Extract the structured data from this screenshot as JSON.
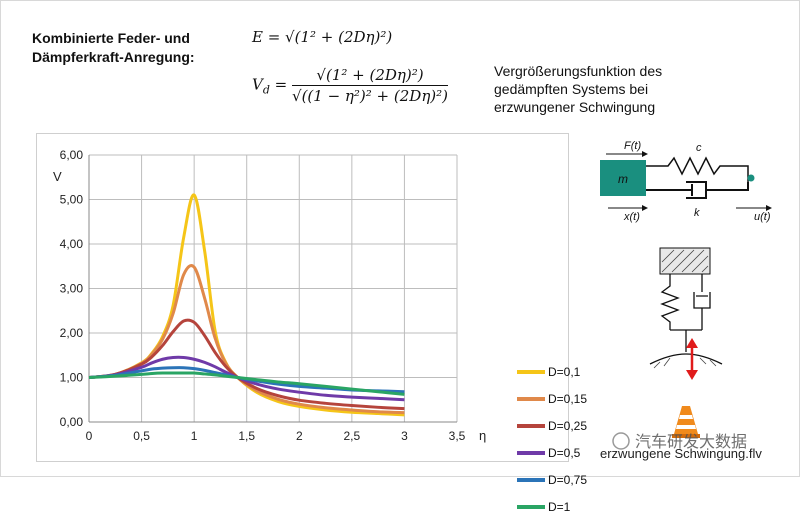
{
  "header": {
    "title_line1": "Kombinierte Feder- und",
    "title_line2": "Dämpferkraft-Anregung:"
  },
  "formulas": {
    "e": "E = √(1² + (2Dη)²)",
    "vd_lhs": "V",
    "vd_sub": "d",
    "vd_num": "√(1² + (2Dη)²)",
    "vd_den": "√((1 − η²)² + (2Dη)²)"
  },
  "description": {
    "line1": "Vergrößerungsfunktion des",
    "line2": "gedämpften Systems bei",
    "line3": "erzwungener Schwingung"
  },
  "chart_data": {
    "type": "line",
    "ylabel": "V",
    "xlabel": "η",
    "xlim": [
      0,
      3.5
    ],
    "ylim": [
      0,
      6
    ],
    "x_ticks": [
      "0",
      "0,5",
      "1",
      "1,5",
      "2",
      "2,5",
      "3",
      "3,5"
    ],
    "y_ticks": [
      "0,00",
      "1,00",
      "2,00",
      "3,00",
      "4,00",
      "5,00",
      "6,00"
    ],
    "grid": true,
    "legend_position": "right",
    "x": [
      0,
      0.25,
      0.5,
      0.6,
      0.7,
      0.8,
      0.9,
      1.0,
      1.1,
      1.2,
      1.3,
      1.414,
      1.6,
      1.8,
      2.0,
      2.25,
      2.5,
      2.75,
      3.0
    ],
    "series": [
      {
        "name": "D=0,1",
        "color": "#f5c518",
        "values": [
          1.0,
          1.07,
          1.33,
          1.55,
          1.92,
          2.62,
          4.14,
          5.1,
          3.84,
          2.04,
          1.34,
          1.0,
          0.66,
          0.46,
          0.35,
          0.27,
          0.22,
          0.19,
          0.16
        ]
      },
      {
        "name": "D=0,15",
        "color": "#e0894a",
        "values": [
          1.0,
          1.07,
          1.32,
          1.53,
          1.86,
          2.44,
          3.31,
          3.48,
          2.78,
          1.88,
          1.32,
          1.0,
          0.7,
          0.51,
          0.4,
          0.32,
          0.27,
          0.23,
          0.21
        ]
      },
      {
        "name": "D=0,25",
        "color": "#b5443c",
        "values": [
          1.0,
          1.07,
          1.3,
          1.47,
          1.72,
          2.03,
          2.27,
          2.24,
          1.94,
          1.56,
          1.25,
          1.0,
          0.75,
          0.59,
          0.49,
          0.42,
          0.37,
          0.33,
          0.3
        ]
      },
      {
        "name": "D=0,5",
        "color": "#6f3aa8",
        "values": [
          1.0,
          1.06,
          1.23,
          1.33,
          1.41,
          1.45,
          1.45,
          1.41,
          1.34,
          1.24,
          1.12,
          1.0,
          0.85,
          0.74,
          0.67,
          0.6,
          0.56,
          0.53,
          0.5
        ]
      },
      {
        "name": "D=0,75",
        "color": "#2b74b8",
        "values": [
          1.0,
          1.05,
          1.15,
          1.19,
          1.21,
          1.22,
          1.22,
          1.2,
          1.16,
          1.11,
          1.06,
          1.0,
          0.92,
          0.85,
          0.8,
          0.76,
          0.72,
          0.7,
          0.68
        ]
      },
      {
        "name": "D=1",
        "color": "#2aa564",
        "values": [
          1.0,
          1.03,
          1.07,
          1.09,
          1.1,
          1.1,
          1.1,
          1.1,
          1.08,
          1.06,
          1.03,
          1.0,
          0.95,
          0.9,
          0.86,
          0.8,
          0.74,
          0.68,
          0.62
        ]
      }
    ]
  },
  "diagram": {
    "force_label": "F(t)",
    "mass_label": "m",
    "spring_label": "c",
    "damper_label": "k",
    "input_x_label": "x(t)",
    "input_u_label": "u(t)",
    "mass_color": "#1a8f7f"
  },
  "footer": {
    "caption": "erzwungene Schwingung.flv",
    "watermark": "汽车研发大数据"
  }
}
